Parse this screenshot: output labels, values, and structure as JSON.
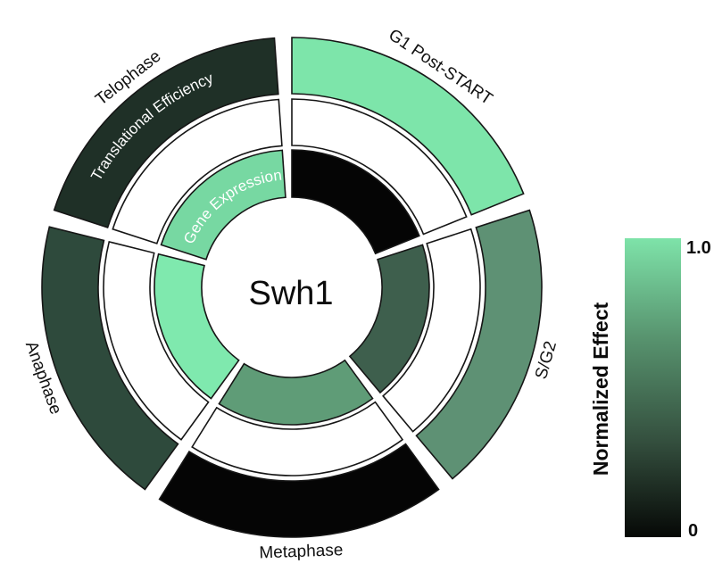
{
  "chart_data": {
    "type": "heatmap",
    "layout": "polar-annular-rings",
    "title": "",
    "center_label": "Swh1",
    "categories": [
      "G1 Post-START",
      "S/G2",
      "Metaphase",
      "Anaphase",
      "Telophase"
    ],
    "rings": [
      {
        "position": "outer",
        "name": "Translational Efficiency",
        "values": [
          0.97,
          0.62,
          0.0,
          0.3,
          0.17
        ],
        "colors": [
          "#7de5aa",
          "#5e9174",
          "#050505",
          "#2e4a3c",
          "#1f3027"
        ]
      },
      {
        "position": "middle",
        "name": "",
        "values": [
          null,
          null,
          null,
          null,
          null
        ],
        "colors": [
          "#ffffff",
          "#ffffff",
          "#ffffff",
          "#ffffff",
          "#ffffff"
        ]
      },
      {
        "position": "inner",
        "name": "Gene Expression",
        "values": [
          0.0,
          0.4,
          0.68,
          1.0,
          0.88
        ],
        "colors": [
          "#050505",
          "#3e5f4d",
          "#5f9c77",
          "#7fe9ae",
          "#77d8a2"
        ]
      }
    ],
    "value_range": [
      0,
      1
    ],
    "start_angle_deg": 90,
    "direction": "clockwise",
    "sector_gap_deg": 4,
    "grid": false,
    "colorbar": {
      "title": "Normalized Effect",
      "max_label": "1.0",
      "min_label": "0",
      "position": "right",
      "gradient_stops": [
        {
          "offset": 0.0,
          "color": "#7ee3a9"
        },
        {
          "offset": 0.33,
          "color": "#58946f"
        },
        {
          "offset": 0.68,
          "color": "#344f3e"
        },
        {
          "offset": 1.0,
          "color": "#060806"
        }
      ]
    },
    "colors": {
      "background": "#ffffff",
      "outline": "#161616",
      "sector_label_text": "#111111",
      "ring_label_text": "#ffffff"
    }
  }
}
